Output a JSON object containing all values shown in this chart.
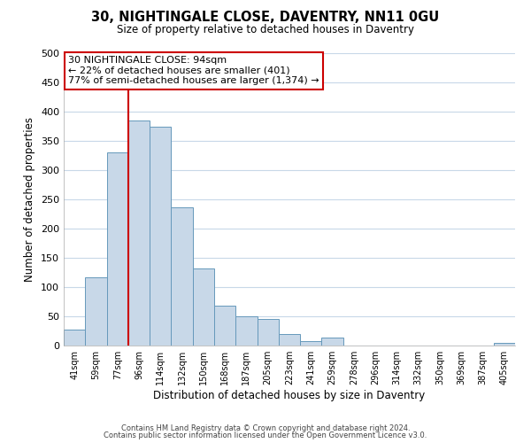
{
  "title": "30, NIGHTINGALE CLOSE, DAVENTRY, NN11 0GU",
  "subtitle": "Size of property relative to detached houses in Daventry",
  "xlabel": "Distribution of detached houses by size in Daventry",
  "ylabel": "Number of detached properties",
  "bar_labels": [
    "41sqm",
    "59sqm",
    "77sqm",
    "96sqm",
    "114sqm",
    "132sqm",
    "150sqm",
    "168sqm",
    "187sqm",
    "205sqm",
    "223sqm",
    "241sqm",
    "259sqm",
    "278sqm",
    "296sqm",
    "314sqm",
    "332sqm",
    "350sqm",
    "369sqm",
    "387sqm",
    "405sqm"
  ],
  "bar_values": [
    28,
    117,
    330,
    385,
    375,
    237,
    132,
    68,
    50,
    46,
    19,
    7,
    13,
    0,
    0,
    0,
    0,
    0,
    0,
    0,
    5
  ],
  "bar_color": "#c8d8e8",
  "bar_edge_color": "#6699bb",
  "vline_color": "#cc0000",
  "vline_x_index": 3,
  "ylim": [
    0,
    500
  ],
  "yticks": [
    0,
    50,
    100,
    150,
    200,
    250,
    300,
    350,
    400,
    450,
    500
  ],
  "annotation_title": "30 NIGHTINGALE CLOSE: 94sqm",
  "annotation_line1": "← 22% of detached houses are smaller (401)",
  "annotation_line2": "77% of semi-detached houses are larger (1,374) →",
  "annotation_box_color": "#ffffff",
  "annotation_box_edge": "#cc0000",
  "footer1": "Contains HM Land Registry data © Crown copyright and database right 2024.",
  "footer2": "Contains public sector information licensed under the Open Government Licence v3.0.",
  "background_color": "#ffffff",
  "grid_color": "#c8d8e8"
}
